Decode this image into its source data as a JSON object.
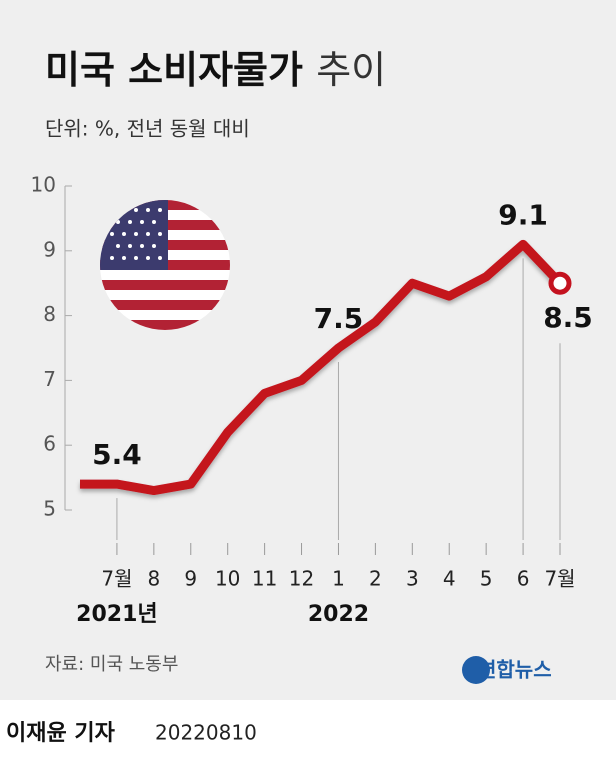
{
  "chart_data": {
    "type": "line",
    "title": "미국 소비자물가",
    "title_light": "추이",
    "subtitle": "단위: %, 전년 동월 대비",
    "categories": [
      null,
      "7월",
      "8",
      "9",
      "10",
      "11",
      "12",
      "1",
      "2",
      "3",
      "4",
      "5",
      "6",
      "7월"
    ],
    "year_labels": [
      null,
      "2021년",
      null,
      null,
      null,
      null,
      null,
      "2022",
      null,
      null,
      null,
      null,
      null,
      null
    ],
    "values": [
      5.4,
      5.4,
      5.3,
      5.4,
      6.2,
      6.8,
      7.0,
      7.5,
      7.9,
      8.5,
      8.3,
      8.6,
      9.1,
      8.5
    ],
    "value_labels": [
      null,
      "5.4",
      null,
      null,
      null,
      null,
      null,
      "7.5",
      null,
      null,
      null,
      null,
      "9.1",
      "8.5"
    ],
    "color": "#c4121f",
    "ylim": [
      5,
      10
    ],
    "yticks": [
      5,
      6,
      7,
      8,
      9,
      10
    ],
    "source": "자료: 미국 노동부",
    "logo": "연합뉴스",
    "byline": "이재윤 기자",
    "date": "20220810"
  }
}
